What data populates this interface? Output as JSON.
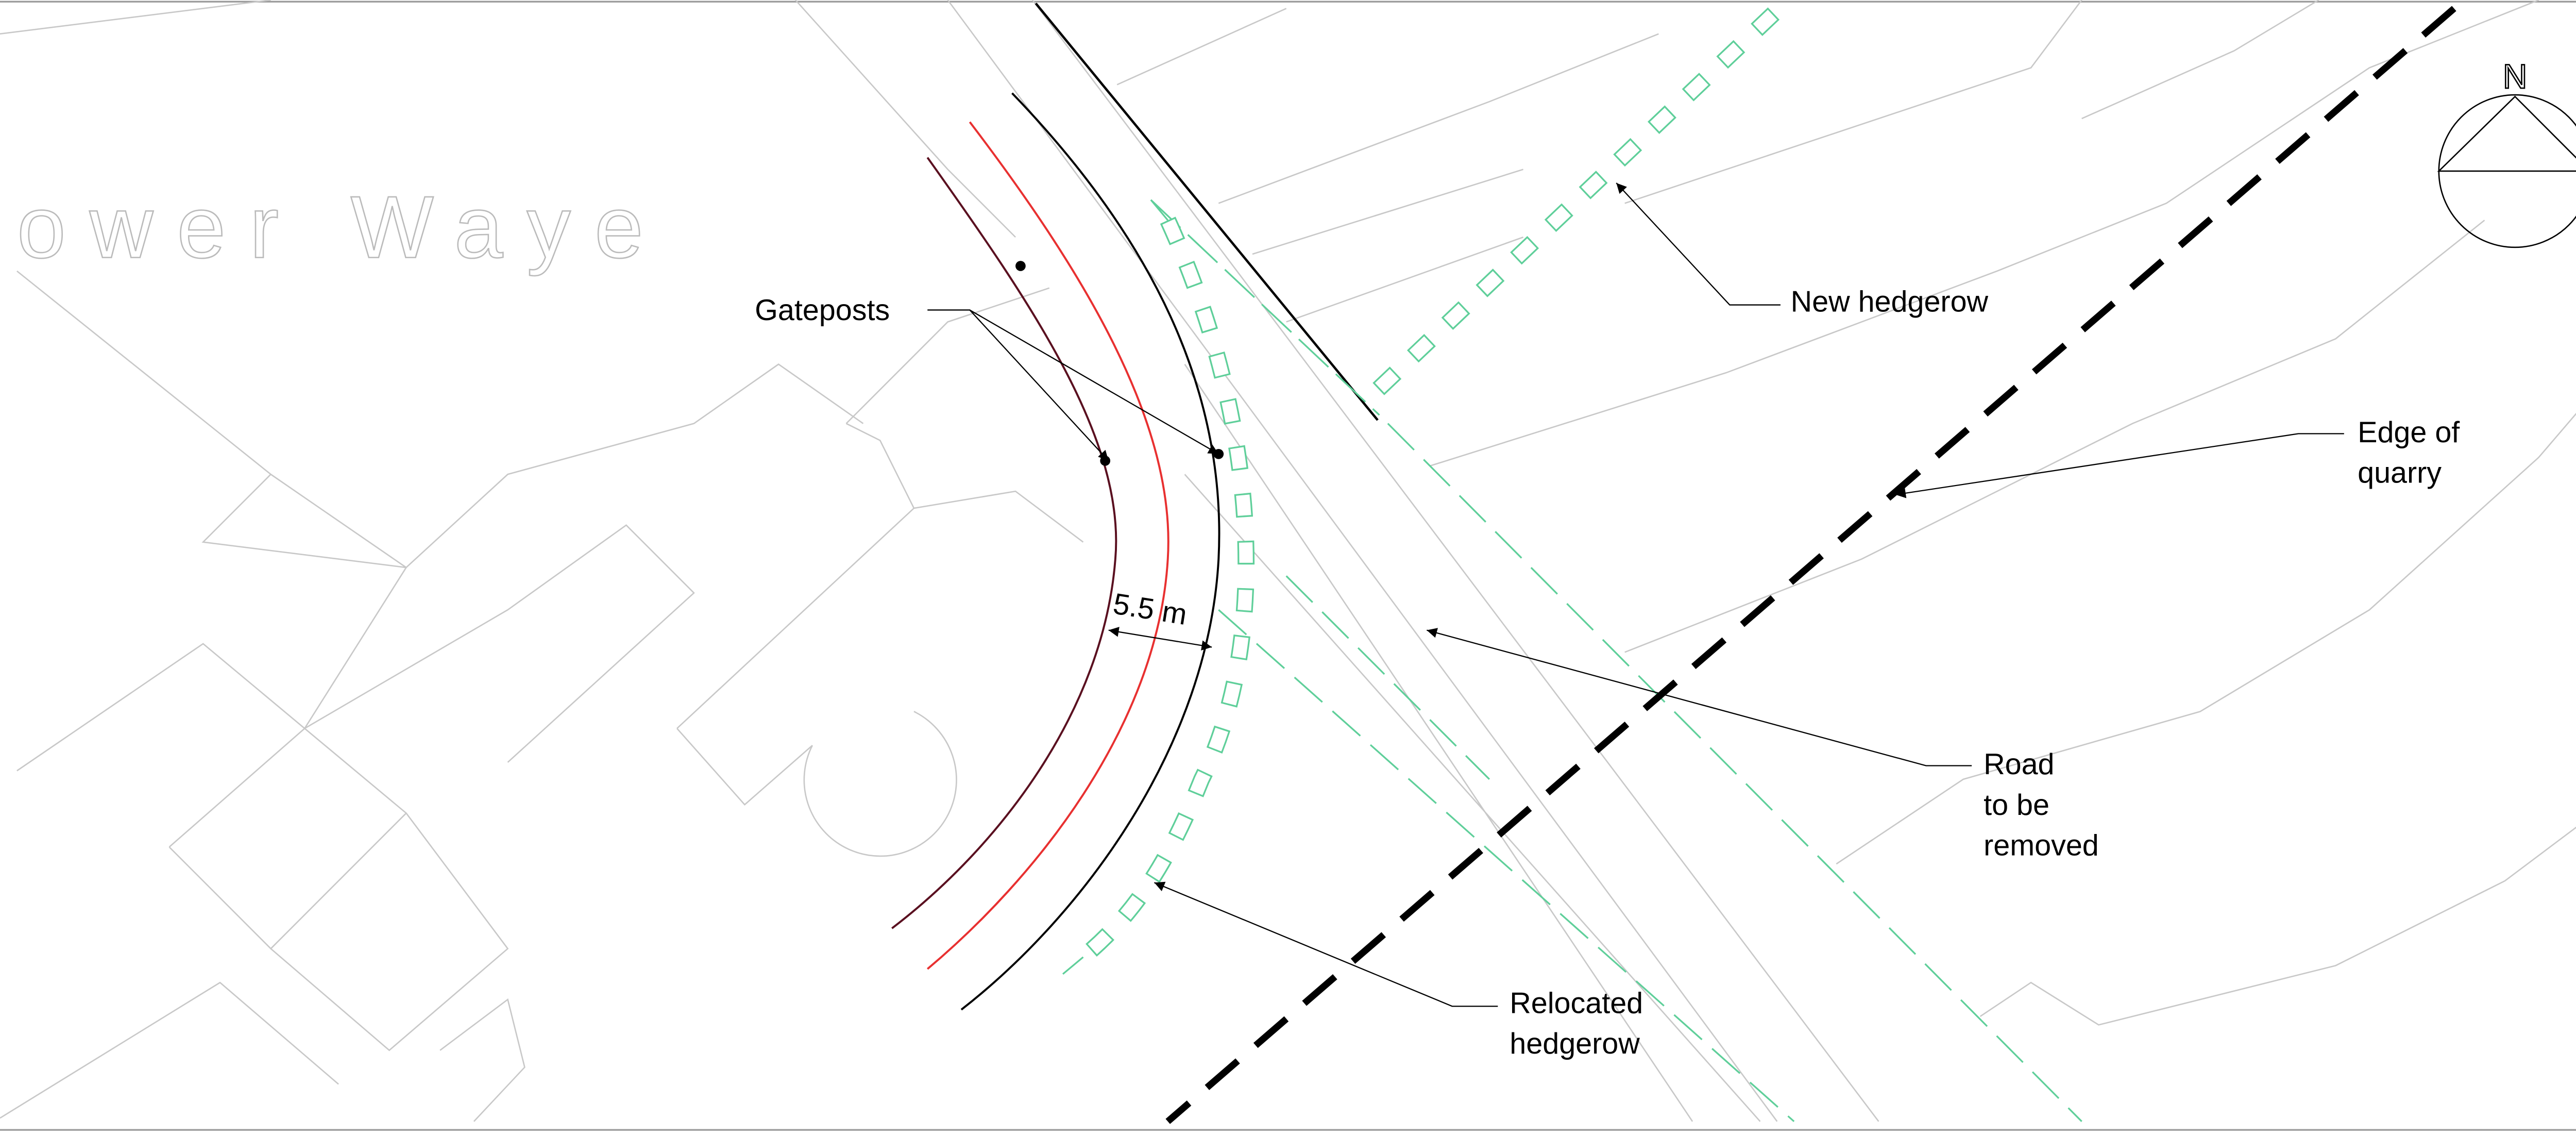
{
  "street_name": "ower Waye",
  "north": "N",
  "dimension": "5.5 m",
  "labels": {
    "gateposts": [
      "Gateposts"
    ],
    "new_hedgerow": [
      "New hedgerow"
    ],
    "edge_of_quarry": [
      "Edge of",
      "quarry"
    ],
    "road_to_be_removed": [
      "Road",
      "to be",
      "removed"
    ],
    "relocated_hedgerow": [
      "Relocated",
      "hedgerow"
    ]
  }
}
